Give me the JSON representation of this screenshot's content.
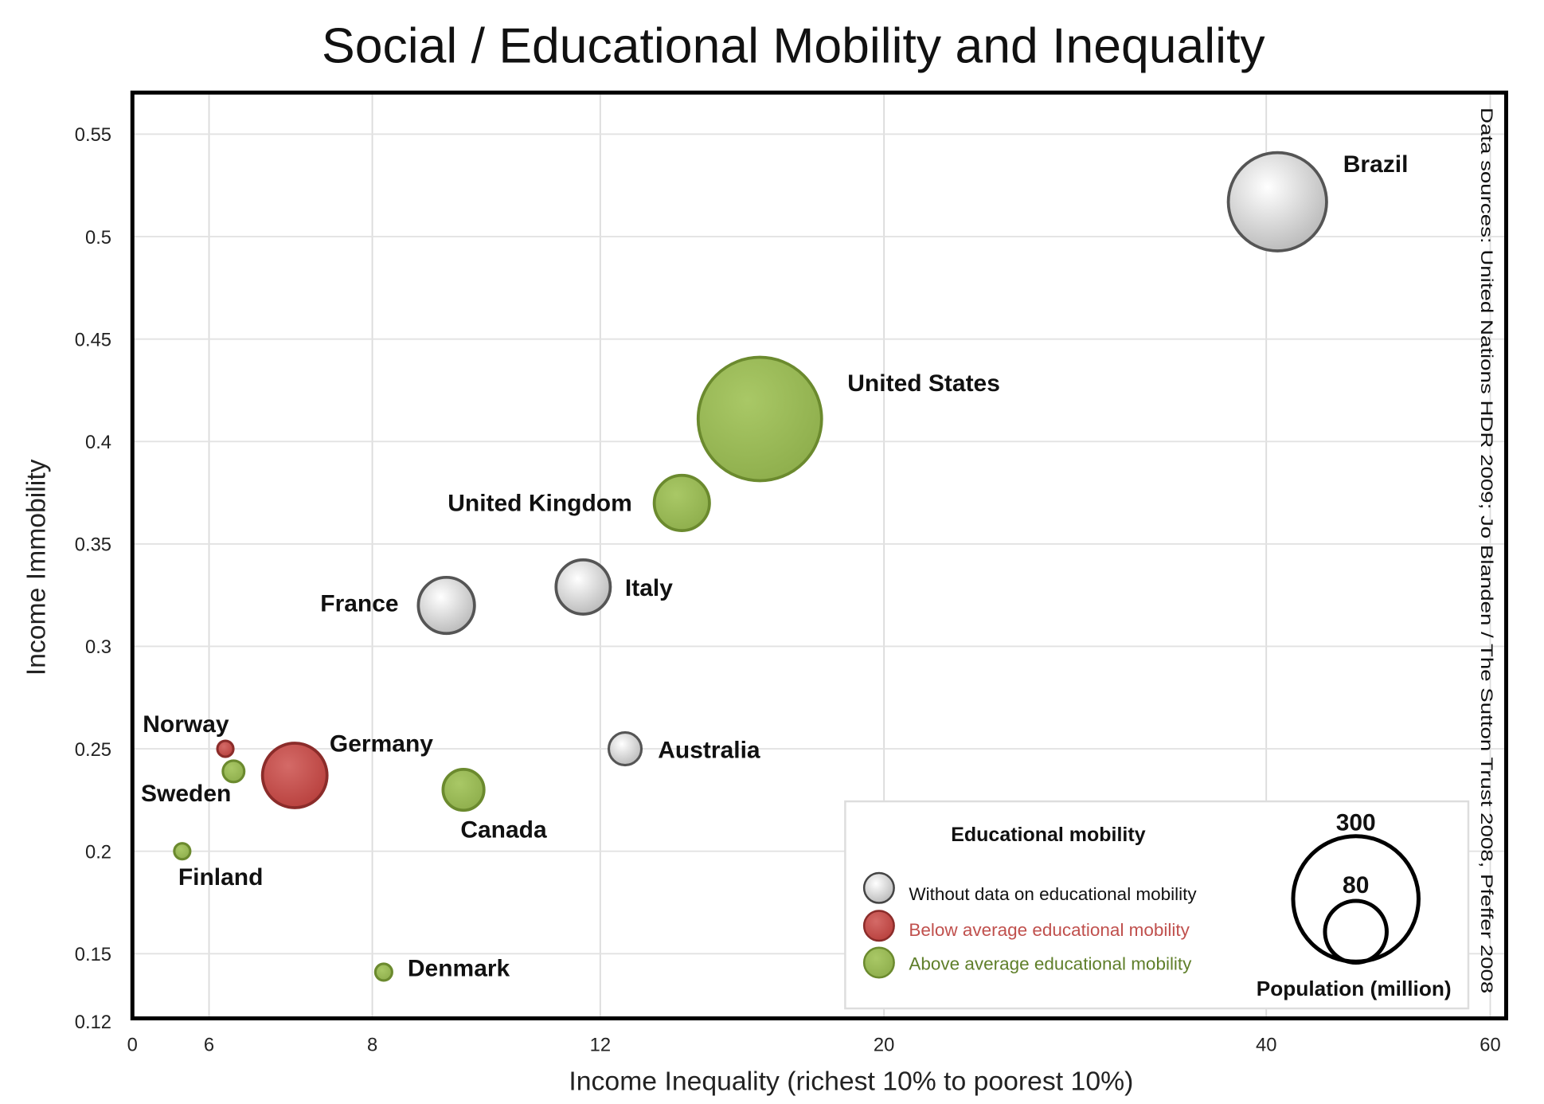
{
  "chart_data": {
    "type": "scatter",
    "title": "Social / Educational Mobility and Inequality",
    "xlabel": "Income Inequality (richest 10% to poorest 10%)",
    "ylabel": "Income Immobility",
    "source_note": "Data sources: United Nations HDR 2009; Jo Blanden / The Sutton Trust 2008, Pfeffer 2008",
    "x_ticks": [
      0,
      6,
      8,
      12,
      20,
      40,
      60
    ],
    "x_tick_labels": [
      "0",
      "6",
      "8",
      "12",
      "20",
      "40",
      "60"
    ],
    "y_ticks": [
      0.12,
      0.15,
      0.2,
      0.25,
      0.3,
      0.35,
      0.4,
      0.45,
      0.5,
      0.55
    ],
    "y_tick_labels": [
      "0.12",
      "0.15",
      "0.2",
      "0.25",
      "0.3",
      "0.35",
      "0.4",
      "0.45",
      "0.5",
      "0.55"
    ],
    "xlim": [
      0,
      60
    ],
    "ylim": [
      0.12,
      0.57
    ],
    "x_scale": "non-uniform (ticks equally labeled, unequal spacing)",
    "grid": true,
    "legend": {
      "title": "Educational mobility",
      "placement": "bottom-right",
      "items": [
        {
          "label": "Without data on educational  mobility",
          "category": "none",
          "color": "#d9d9d9",
          "text_color": "#111111"
        },
        {
          "label": "Below average educational  mobility",
          "category": "below",
          "color": "#c0504d",
          "text_color": "#c0504d"
        },
        {
          "label": "Above average educational  mobility",
          "category": "above",
          "color": "#9bbb59",
          "text_color": "#5f7f2a"
        }
      ],
      "size_title": "Population (million)",
      "size_values": [
        300,
        80
      ],
      "size_labels": [
        "300",
        "80"
      ]
    },
    "points": [
      {
        "name": "Brazil",
        "x": 41,
        "y": 0.517,
        "population": 190,
        "category": "none"
      },
      {
        "name": "United States",
        "x": 16.5,
        "y": 0.411,
        "population": 300,
        "category": "above"
      },
      {
        "name": "United Kingdom",
        "x": 14.3,
        "y": 0.37,
        "population": 60,
        "category": "above"
      },
      {
        "name": "Italy",
        "x": 11.7,
        "y": 0.329,
        "population": 58,
        "category": "none"
      },
      {
        "name": "France",
        "x": 9.3,
        "y": 0.32,
        "population": 62,
        "category": "none"
      },
      {
        "name": "Australia",
        "x": 12.7,
        "y": 0.25,
        "population": 21,
        "category": "none"
      },
      {
        "name": "Canada",
        "x": 9.6,
        "y": 0.23,
        "population": 33,
        "category": "above"
      },
      {
        "name": "Germany",
        "x": 7.05,
        "y": 0.237,
        "population": 82,
        "category": "below"
      },
      {
        "name": "Norway",
        "x": 6.2,
        "y": 0.25,
        "population": 5,
        "category": "below"
      },
      {
        "name": "Sweden",
        "x": 6.3,
        "y": 0.239,
        "population": 9,
        "category": "above"
      },
      {
        "name": "Finland",
        "x": 3.9,
        "y": 0.2,
        "population": 5,
        "category": "above"
      },
      {
        "name": "Denmark",
        "x": 8.2,
        "y": 0.141,
        "population": 5.5,
        "category": "above"
      }
    ]
  }
}
